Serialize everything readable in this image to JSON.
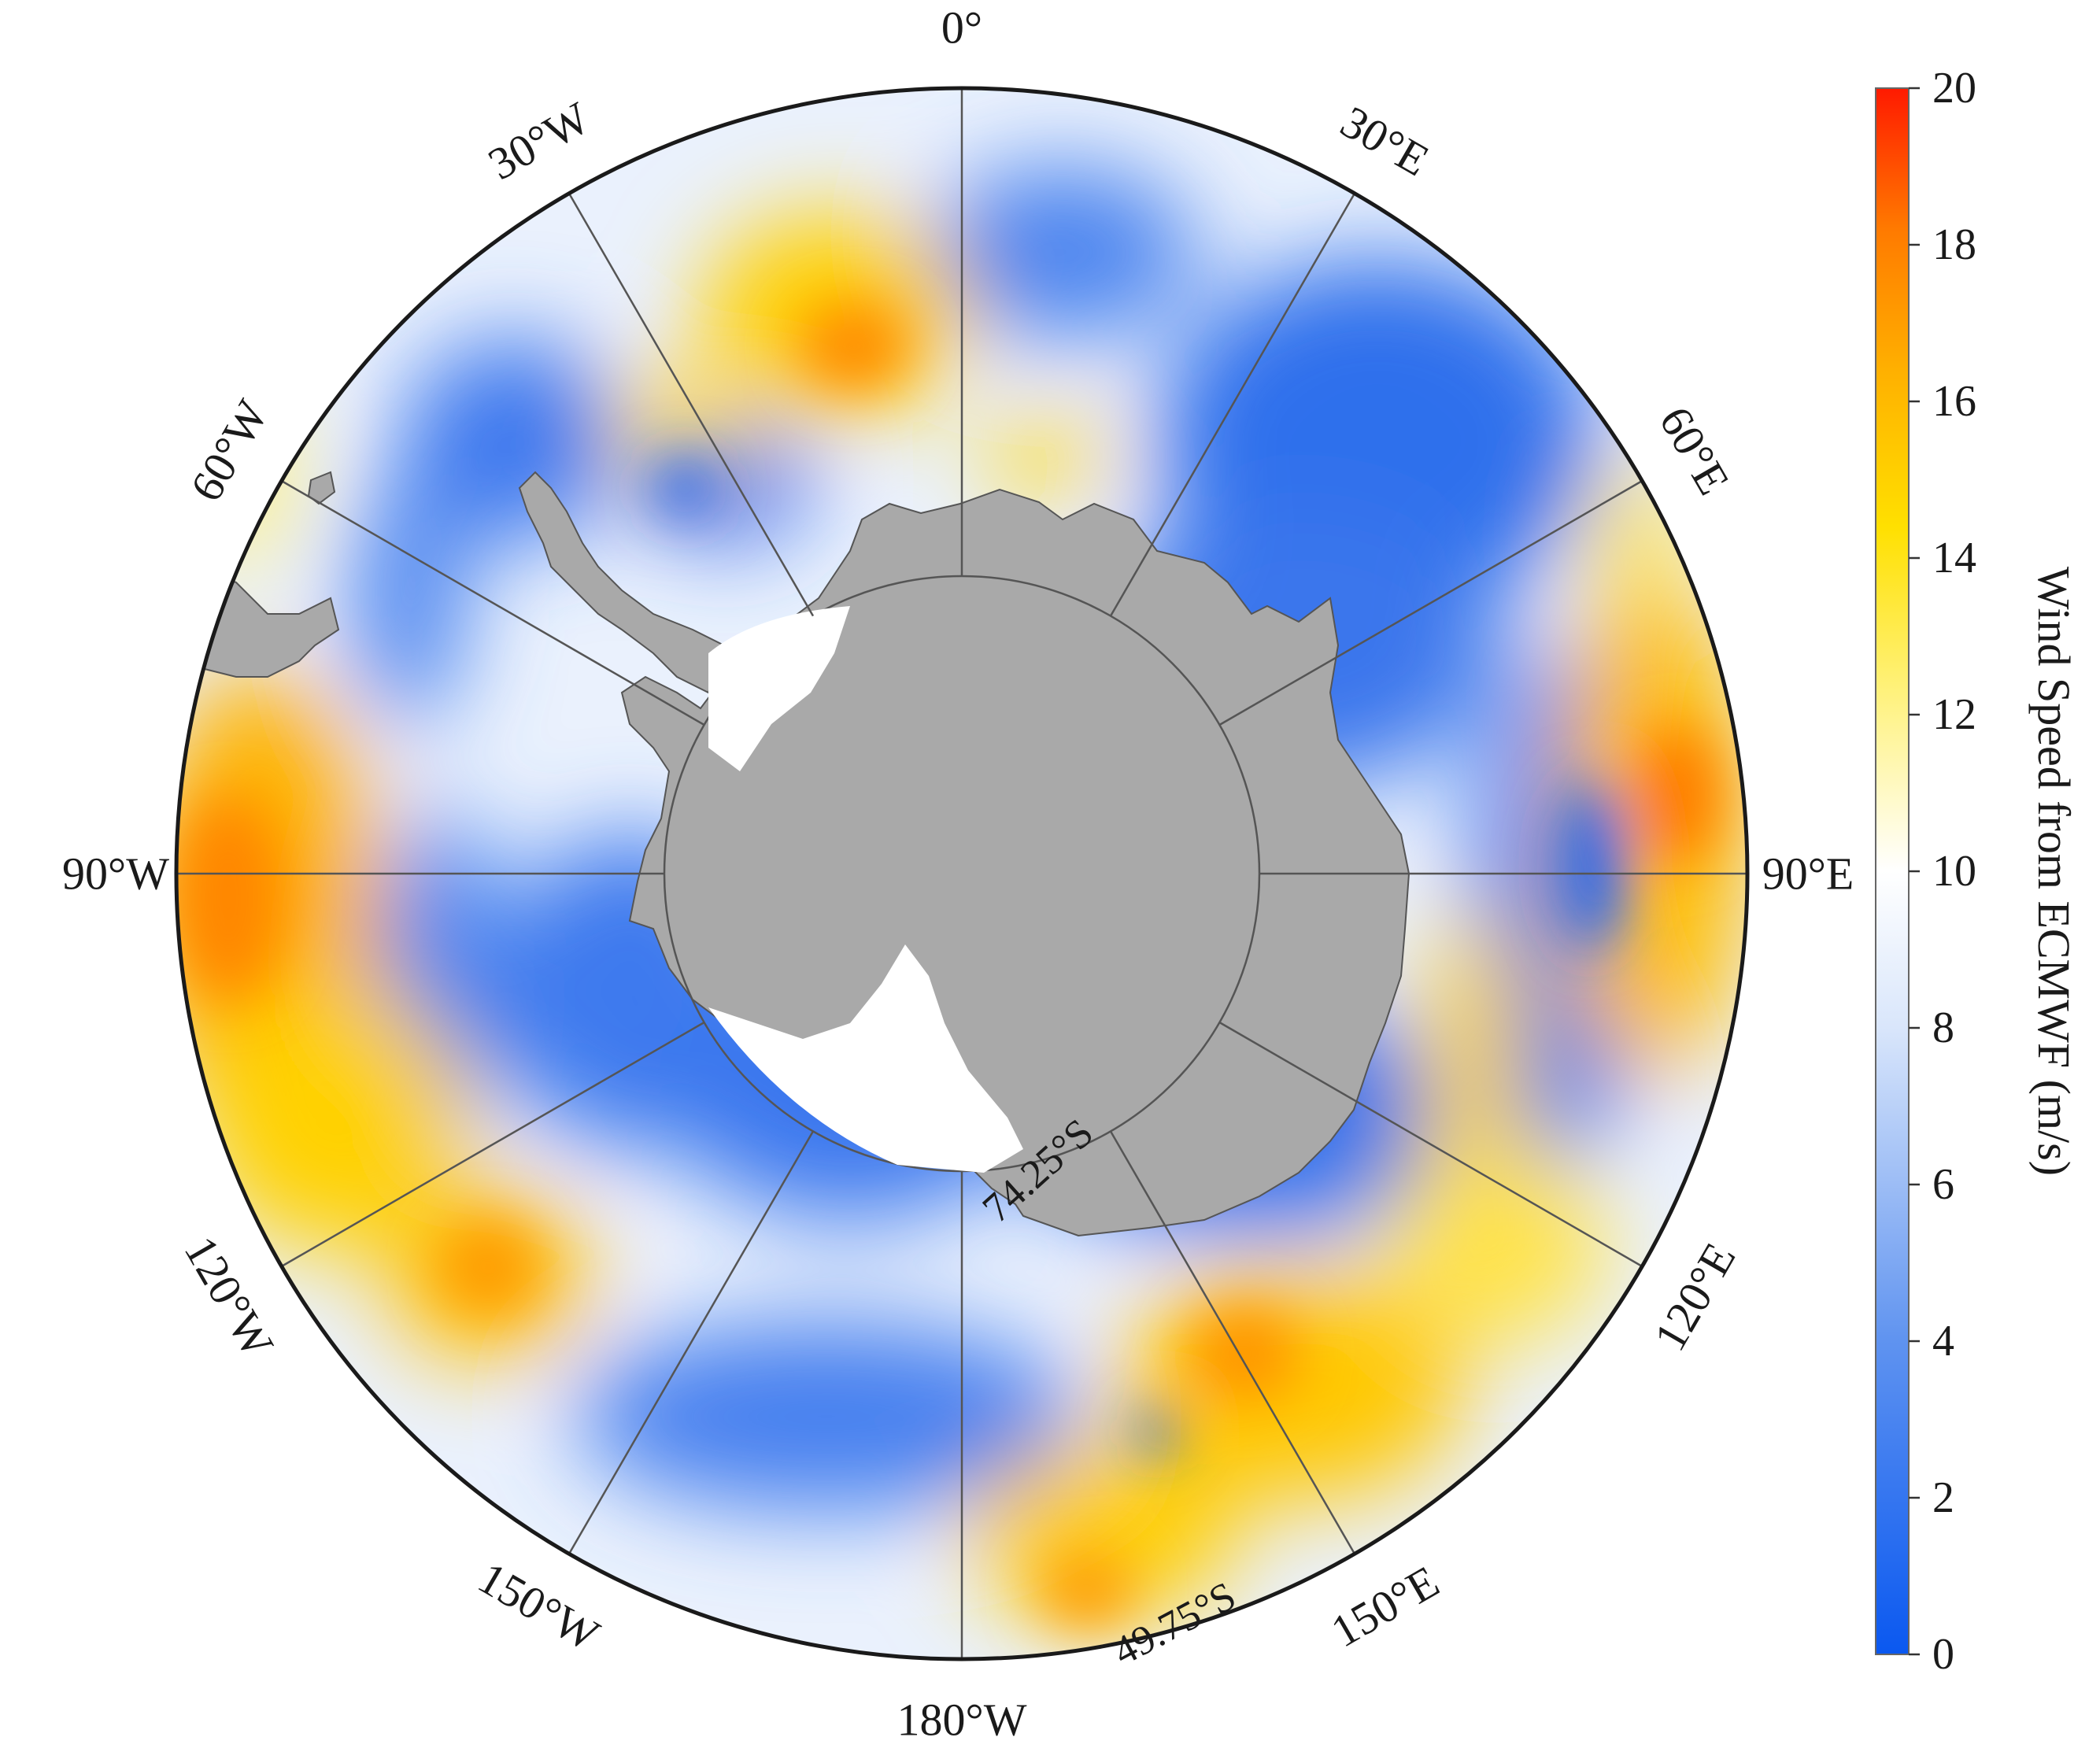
{
  "colorbar": {
    "label": "Wind Speed from ECMWF (m/s)",
    "min": 0,
    "max": 20,
    "ticks": [
      "0",
      "2",
      "4",
      "6",
      "8",
      "10",
      "12",
      "14",
      "16",
      "18",
      "20"
    ],
    "colors": [
      "#0a58f0",
      "#5f93f0",
      "#ffffff",
      "#fff176",
      "#ffd500",
      "#ff9a00",
      "#ff1a00"
    ]
  },
  "map": {
    "projection": "south-polar-stereographic",
    "outer_latitude": "49.75°S",
    "inner_latitude": "74.25°S",
    "longitudes": [
      {
        "label": "0°",
        "deg": 0
      },
      {
        "label": "30°E",
        "deg": 30
      },
      {
        "label": "60°E",
        "deg": 60
      },
      {
        "label": "90°E",
        "deg": 90
      },
      {
        "label": "120°E",
        "deg": 120
      },
      {
        "label": "150°E",
        "deg": 150
      },
      {
        "label": "180°W",
        "deg": 180
      },
      {
        "label": "150°W",
        "deg": 210
      },
      {
        "label": "120°W",
        "deg": 240
      },
      {
        "label": "90°W",
        "deg": 270
      },
      {
        "label": "60°W",
        "deg": 300
      },
      {
        "label": "30°W",
        "deg": 330
      }
    ],
    "land_color": "#a9a9a9",
    "ice_shelf_color": "#ffffff"
  }
}
